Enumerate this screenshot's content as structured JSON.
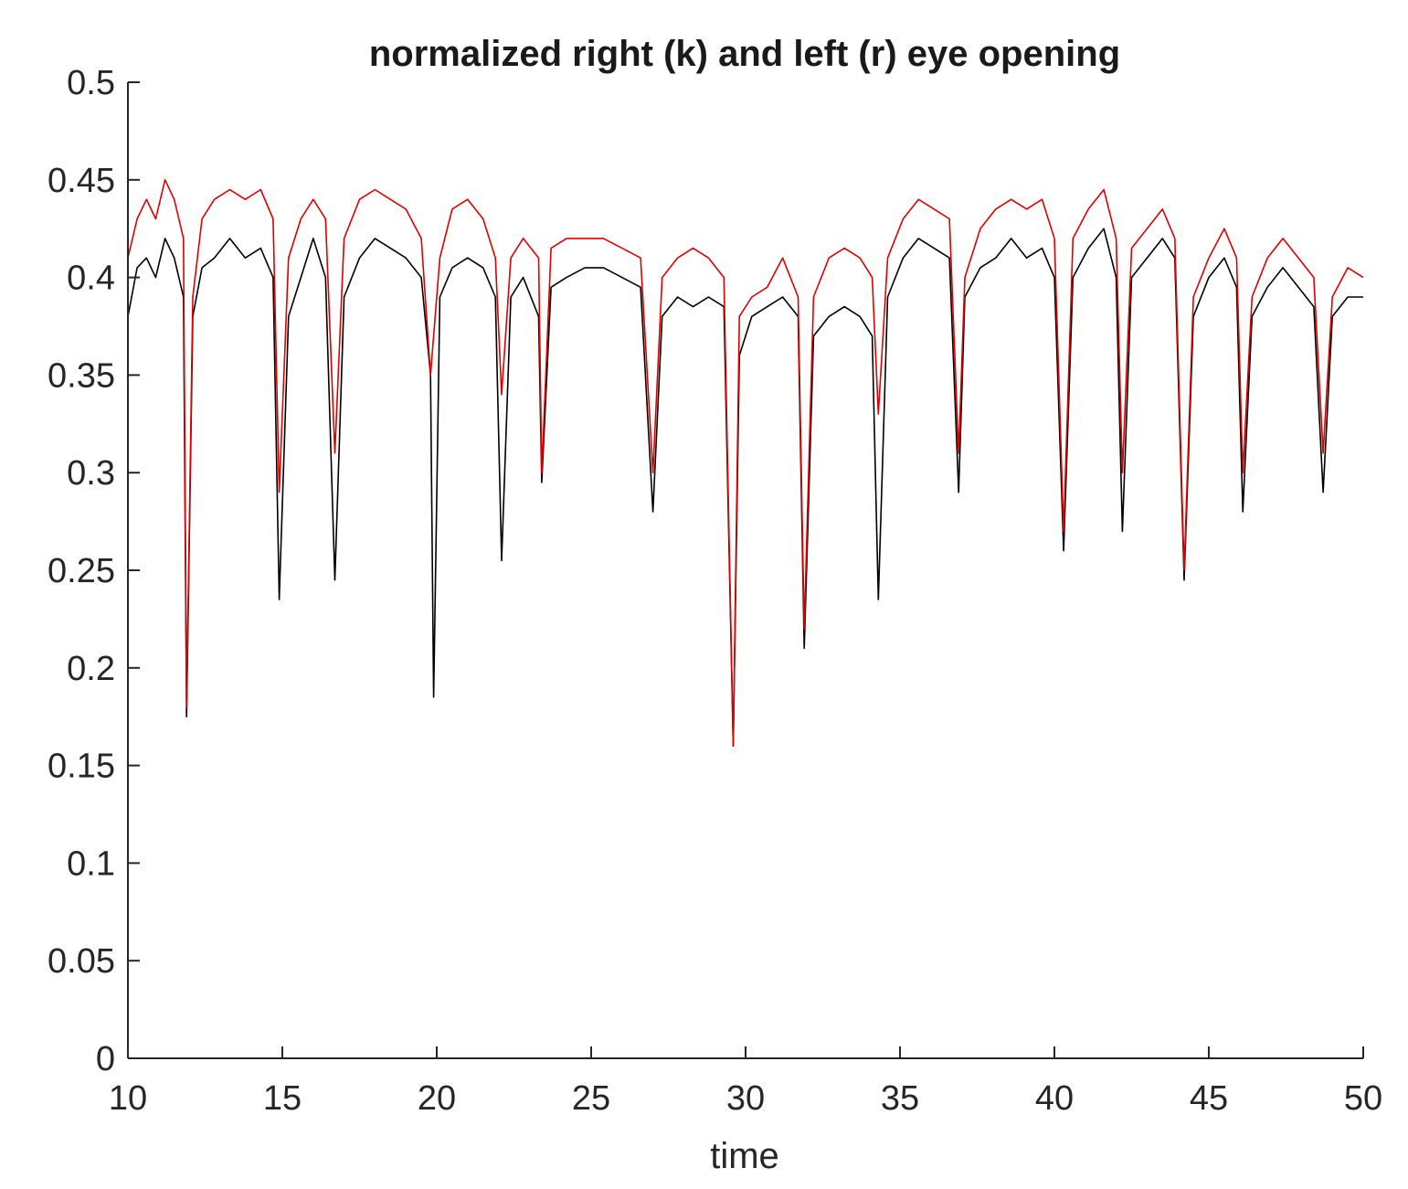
{
  "chart_data": {
    "type": "line",
    "title": "normalized right (k) and left (r) eye opening",
    "xlabel": "time",
    "ylabel": "",
    "xlim": [
      10,
      50
    ],
    "ylim": [
      0,
      0.5
    ],
    "xticks": [
      10,
      15,
      20,
      25,
      30,
      35,
      40,
      45,
      50
    ],
    "xtick_labels": [
      "10",
      "15",
      "20",
      "25",
      "30",
      "35",
      "40",
      "45",
      "50"
    ],
    "yticks": [
      0,
      0.05,
      0.1,
      0.15,
      0.2,
      0.25,
      0.3,
      0.35,
      0.4,
      0.45,
      0.5
    ],
    "ytick_labels": [
      "0",
      "0.05",
      "0.1",
      "0.15",
      "0.2",
      "0.25",
      "0.3",
      "0.35",
      "0.4",
      "0.45",
      "0.5"
    ],
    "grid": false,
    "legend": "none",
    "series": [
      {
        "color": "#000000",
        "x": [
          10.0,
          10.3,
          10.6,
          10.9,
          11.2,
          11.5,
          11.8,
          11.9,
          12.1,
          12.4,
          12.8,
          13.3,
          13.8,
          14.3,
          14.7,
          14.9,
          15.2,
          15.6,
          16.0,
          16.4,
          16.7,
          17.0,
          17.5,
          18.0,
          18.5,
          19.0,
          19.5,
          19.8,
          19.9,
          20.1,
          20.5,
          21.0,
          21.5,
          21.9,
          22.1,
          22.4,
          22.8,
          23.3,
          23.4,
          23.7,
          24.2,
          24.8,
          25.4,
          26.0,
          26.6,
          27.0,
          27.3,
          27.8,
          28.3,
          28.8,
          29.3,
          29.6,
          29.8,
          30.2,
          30.7,
          31.2,
          31.7,
          31.9,
          32.2,
          32.7,
          33.2,
          33.7,
          34.1,
          34.3,
          34.6,
          35.1,
          35.6,
          36.1,
          36.6,
          36.9,
          37.1,
          37.6,
          38.1,
          38.6,
          39.1,
          39.6,
          40.0,
          40.3,
          40.6,
          41.1,
          41.6,
          42.0,
          42.2,
          42.5,
          43.0,
          43.5,
          43.9,
          44.2,
          44.5,
          45.0,
          45.5,
          45.9,
          46.1,
          46.4,
          46.9,
          47.4,
          47.9,
          48.4,
          48.7,
          49.0,
          49.5,
          50.0
        ],
        "values": [
          0.38,
          0.405,
          0.41,
          0.4,
          0.42,
          0.41,
          0.39,
          0.175,
          0.38,
          0.405,
          0.41,
          0.42,
          0.41,
          0.415,
          0.4,
          0.235,
          0.38,
          0.4,
          0.42,
          0.4,
          0.245,
          0.39,
          0.41,
          0.42,
          0.415,
          0.41,
          0.4,
          0.35,
          0.185,
          0.39,
          0.405,
          0.41,
          0.405,
          0.39,
          0.255,
          0.39,
          0.4,
          0.38,
          0.295,
          0.395,
          0.4,
          0.405,
          0.405,
          0.4,
          0.395,
          0.28,
          0.38,
          0.39,
          0.385,
          0.39,
          0.385,
          0.16,
          0.36,
          0.38,
          0.385,
          0.39,
          0.38,
          0.21,
          0.37,
          0.38,
          0.385,
          0.38,
          0.37,
          0.235,
          0.39,
          0.41,
          0.42,
          0.415,
          0.41,
          0.29,
          0.39,
          0.405,
          0.41,
          0.42,
          0.41,
          0.415,
          0.4,
          0.26,
          0.4,
          0.415,
          0.425,
          0.4,
          0.27,
          0.4,
          0.41,
          0.42,
          0.41,
          0.245,
          0.38,
          0.4,
          0.41,
          0.395,
          0.28,
          0.38,
          0.395,
          0.405,
          0.395,
          0.385,
          0.29,
          0.38,
          0.39,
          0.39
        ]
      },
      {
        "color": "#e00000",
        "x": [
          10.0,
          10.3,
          10.6,
          10.9,
          11.2,
          11.5,
          11.8,
          11.9,
          12.1,
          12.4,
          12.8,
          13.3,
          13.8,
          14.3,
          14.7,
          14.9,
          15.2,
          15.6,
          16.0,
          16.4,
          16.7,
          17.0,
          17.5,
          18.0,
          18.5,
          19.0,
          19.5,
          19.8,
          19.9,
          20.1,
          20.5,
          21.0,
          21.5,
          21.9,
          22.1,
          22.4,
          22.8,
          23.3,
          23.4,
          23.7,
          24.2,
          24.8,
          25.4,
          26.0,
          26.6,
          27.0,
          27.3,
          27.8,
          28.3,
          28.8,
          29.3,
          29.6,
          29.8,
          30.2,
          30.7,
          31.2,
          31.7,
          31.9,
          32.2,
          32.7,
          33.2,
          33.7,
          34.1,
          34.3,
          34.6,
          35.1,
          35.6,
          36.1,
          36.6,
          36.9,
          37.1,
          37.6,
          38.1,
          38.6,
          39.1,
          39.6,
          40.0,
          40.3,
          40.6,
          41.1,
          41.6,
          42.0,
          42.2,
          42.5,
          43.0,
          43.5,
          43.9,
          44.2,
          44.5,
          45.0,
          45.5,
          45.9,
          46.1,
          46.4,
          46.9,
          47.4,
          47.9,
          48.4,
          48.7,
          49.0,
          49.5,
          50.0
        ],
        "values": [
          0.41,
          0.43,
          0.44,
          0.43,
          0.45,
          0.44,
          0.42,
          0.18,
          0.39,
          0.43,
          0.44,
          0.445,
          0.44,
          0.445,
          0.43,
          0.29,
          0.41,
          0.43,
          0.44,
          0.43,
          0.31,
          0.42,
          0.44,
          0.445,
          0.44,
          0.435,
          0.42,
          0.35,
          0.37,
          0.41,
          0.435,
          0.44,
          0.43,
          0.41,
          0.34,
          0.41,
          0.42,
          0.41,
          0.3,
          0.415,
          0.42,
          0.42,
          0.42,
          0.415,
          0.41,
          0.3,
          0.4,
          0.41,
          0.415,
          0.41,
          0.4,
          0.16,
          0.38,
          0.39,
          0.395,
          0.41,
          0.39,
          0.22,
          0.39,
          0.41,
          0.415,
          0.41,
          0.4,
          0.33,
          0.41,
          0.43,
          0.44,
          0.435,
          0.43,
          0.31,
          0.4,
          0.425,
          0.435,
          0.44,
          0.435,
          0.44,
          0.42,
          0.27,
          0.42,
          0.435,
          0.445,
          0.42,
          0.3,
          0.415,
          0.425,
          0.435,
          0.42,
          0.25,
          0.39,
          0.41,
          0.425,
          0.41,
          0.3,
          0.39,
          0.41,
          0.42,
          0.41,
          0.4,
          0.31,
          0.39,
          0.405,
          0.4
        ]
      }
    ]
  }
}
